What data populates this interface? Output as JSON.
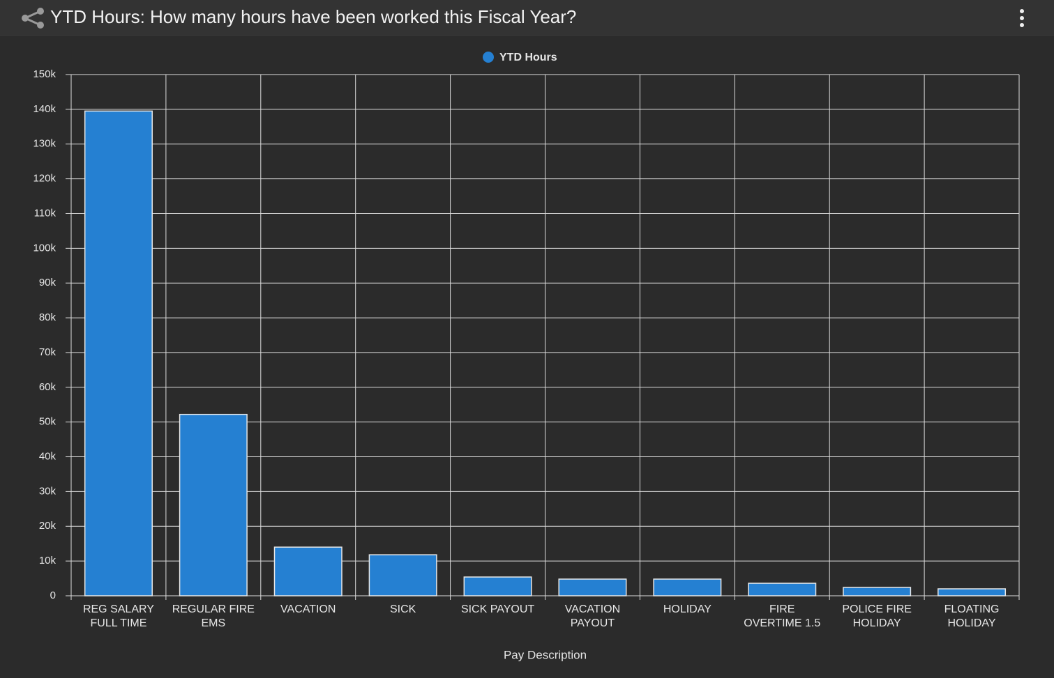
{
  "chart_data": {
    "type": "bar",
    "title": "YTD Hours: How many hours have been worked this Fiscal Year?",
    "x_label": "Pay Description",
    "categories": [
      "REG SALARY FULL TIME",
      "REGULAR FIRE EMS",
      "VACATION",
      "SICK",
      "SICK PAYOUT",
      "VACATION PAYOUT",
      "HOLIDAY",
      "FIRE OVERTIME 1.5",
      "POLICE FIRE HOLIDAY",
      "FLOATING HOLIDAY"
    ],
    "series": [
      {
        "name": "YTD Hours",
        "color": "#2580d2",
        "values": [
          139500,
          52200,
          14000,
          11800,
          5400,
          4800,
          4800,
          3600,
          2400,
          2000
        ]
      }
    ],
    "ylim": [
      0,
      150000
    ],
    "yticks": [
      0,
      {
        "value": 10000,
        "label": "10k"
      },
      {
        "value": 20000,
        "label": "20k"
      },
      {
        "value": 30000,
        "label": "30k"
      },
      {
        "value": 40000,
        "label": "40k"
      },
      {
        "value": 50000,
        "label": "50k"
      },
      {
        "value": 60000,
        "label": "60k"
      },
      {
        "value": 70000,
        "label": "70k"
      },
      {
        "value": 80000,
        "label": "80k"
      },
      {
        "value": 90000,
        "label": "90k"
      },
      {
        "value": 100000,
        "label": "100k"
      },
      {
        "value": 110000,
        "label": "110k"
      },
      {
        "value": 120000,
        "label": "120k"
      },
      {
        "value": 130000,
        "label": "130k"
      },
      {
        "value": 140000,
        "label": "140k"
      },
      {
        "value": 150000,
        "label": "150k"
      }
    ],
    "grid": true
  }
}
